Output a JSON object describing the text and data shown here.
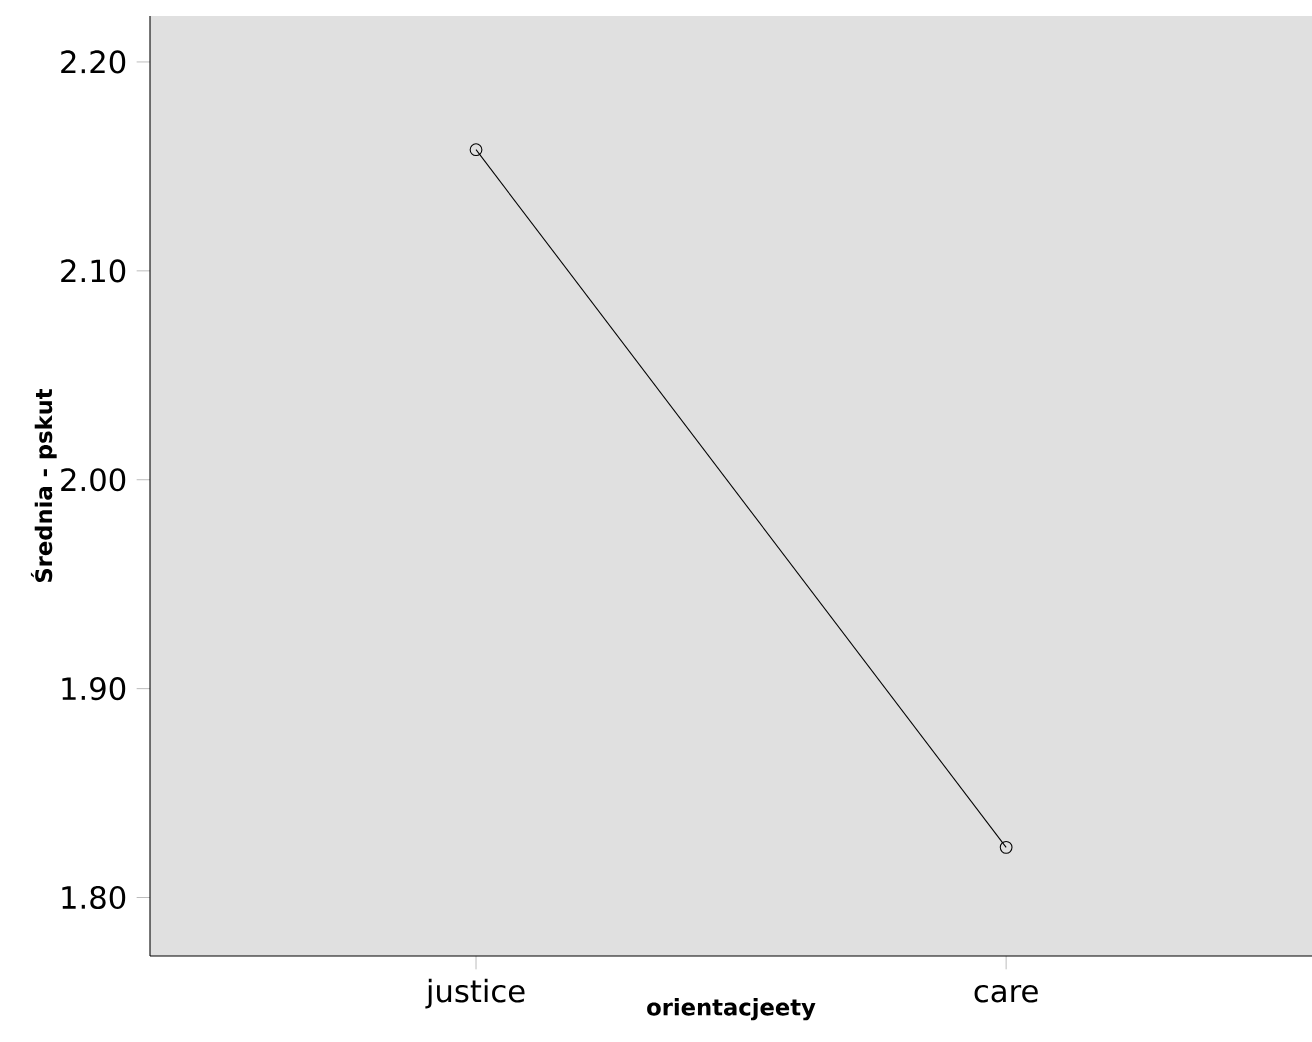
{
  "chart_data": {
    "type": "line",
    "xlabel": "orientacjeety",
    "ylabel": "Średnia - pskut",
    "categories": [
      "justice",
      "care"
    ],
    "series": [
      {
        "color": "#000000",
        "values": [
          2.158,
          1.824
        ]
      }
    ],
    "ylim": [
      1.772,
      2.222
    ],
    "yticks": [
      {
        "value": 1.8,
        "label": "1.80"
      },
      {
        "value": 1.9,
        "label": "1.90"
      },
      {
        "value": 2.0,
        "label": "2.00"
      },
      {
        "value": 2.1,
        "label": "2.10"
      },
      {
        "value": 2.2,
        "label": "2.20"
      }
    ],
    "marker": "circle",
    "line_style": "solid",
    "grid": false
  }
}
